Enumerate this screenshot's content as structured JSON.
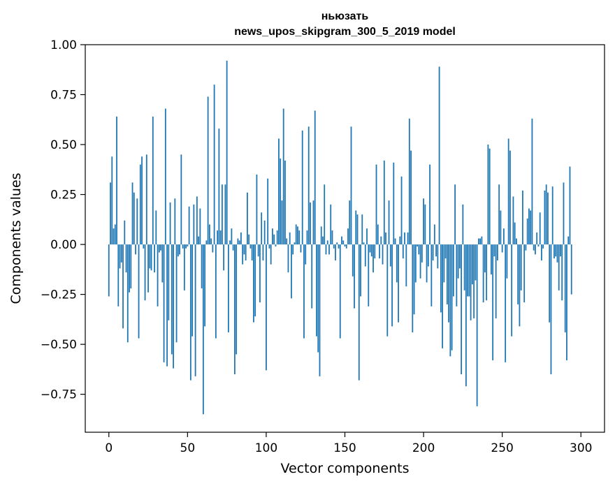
{
  "chart_data": {
    "type": "bar",
    "title": "ньюзать\nnews_upos_skipgram_300_5_2019 model",
    "xlabel": "Vector components",
    "ylabel": "Components values",
    "xlim": [
      -15,
      315
    ],
    "ylim": [
      -0.94,
      1.0
    ],
    "xticks": [
      0,
      50,
      100,
      150,
      200,
      250,
      300
    ],
    "xtick_labels": [
      "0",
      "50",
      "100",
      "150",
      "200",
      "250",
      "300"
    ],
    "yticks": [
      -0.75,
      -0.5,
      -0.25,
      0.0,
      0.25,
      0.5,
      0.75,
      1.0
    ],
    "ytick_labels": [
      "−0.75",
      "−0.50",
      "−0.25",
      "0.00",
      "0.25",
      "0.50",
      "0.75",
      "1.00"
    ],
    "grid": false,
    "legend": "none",
    "bar_color": "#1f77b4",
    "series": [
      {
        "values": [
          -0.26,
          0.31,
          0.44,
          0.08,
          0.1,
          0.64,
          -0.31,
          -0.12,
          -0.09,
          -0.42,
          0.12,
          -0.14,
          -0.49,
          -0.24,
          -0.22,
          0.31,
          0.26,
          -0.05,
          0.23,
          -0.47,
          0.4,
          0.44,
          -0.02,
          -0.28,
          0.45,
          -0.24,
          -0.12,
          -0.13,
          0.64,
          -0.14,
          0.17,
          -0.31,
          -0.04,
          -0.03,
          -0.19,
          -0.59,
          0.68,
          -0.61,
          -0.38,
          0.21,
          -0.55,
          -0.62,
          0.23,
          -0.49,
          -0.06,
          -0.05,
          0.45,
          -0.02,
          -0.23,
          -0.02,
          -0.01,
          0.19,
          -0.68,
          -0.46,
          0.2,
          -0.66,
          0.24,
          0.04,
          0.18,
          -0.22,
          -0.85,
          -0.41,
          0.02,
          0.74,
          0.1,
          0.03,
          -0.04,
          0.8,
          -0.47,
          0.07,
          0.58,
          0.07,
          0.3,
          -0.13,
          0.3,
          0.92,
          -0.44,
          0.02,
          0.08,
          -0.03,
          -0.65,
          -0.55,
          0.03,
          0.02,
          0.06,
          -0.1,
          -0.05,
          -0.08,
          0.26,
          0.05,
          -0.02,
          -0.08,
          -0.39,
          -0.36,
          0.35,
          -0.06,
          -0.29,
          0.16,
          -0.08,
          0.12,
          -0.63,
          0.33,
          -0.02,
          -0.1,
          0.08,
          0.05,
          -0.01,
          0.07,
          0.53,
          0.43,
          0.22,
          0.68,
          0.42,
          0.03,
          -0.14,
          0.06,
          -0.27,
          -0.05,
          0.01,
          0.1,
          0.09,
          0.07,
          -0.04,
          0.57,
          -0.47,
          -0.1,
          0.07,
          0.59,
          0.21,
          -0.32,
          0.22,
          0.67,
          -0.46,
          -0.54,
          -0.66,
          0.09,
          0.04,
          0.3,
          -0.05,
          0.02,
          -0.05,
          0.2,
          0.07,
          -0.02,
          -0.08,
          0.01,
          -0.02,
          -0.47,
          0.04,
          0.02,
          -0.01,
          -0.02,
          0.08,
          0.22,
          0.59,
          -0.16,
          -0.32,
          0.17,
          0.15,
          -0.68,
          -0.26,
          0.15,
          0.01,
          -0.11,
          0.08,
          -0.31,
          -0.04,
          -0.06,
          -0.14,
          -0.07,
          0.4,
          0.1,
          -0.07,
          0.04,
          -0.1,
          0.42,
          0.06,
          -0.46,
          0.22,
          -0.11,
          -0.41,
          0.41,
          0.03,
          -0.19,
          -0.39,
          0.04,
          0.34,
          -0.07,
          0.06,
          -0.21,
          0.06,
          0.63,
          0.47,
          -0.44,
          -0.35,
          -0.19,
          -0.01,
          -0.05,
          -0.17,
          -0.09,
          0.23,
          0.2,
          -0.19,
          -0.11,
          0.4,
          -0.31,
          -0.08,
          0.1,
          -0.06,
          -0.12,
          0.89,
          -0.34,
          -0.52,
          -0.19,
          -0.07,
          -0.3,
          -0.39,
          -0.56,
          -0.53,
          -0.26,
          0.3,
          -0.31,
          -0.17,
          -0.12,
          -0.65,
          0.2,
          -0.23,
          -0.71,
          -0.26,
          -0.26,
          -0.38,
          -0.2,
          -0.37,
          -0.18,
          -0.81,
          0.03,
          0.03,
          0.04,
          -0.29,
          -0.14,
          -0.28,
          0.5,
          0.48,
          -0.15,
          -0.58,
          -0.06,
          -0.37,
          -0.08,
          0.3,
          0.17,
          -0.04,
          0.08,
          -0.59,
          -0.17,
          0.53,
          0.47,
          -0.46,
          0.24,
          0.11,
          0.03,
          -0.3,
          -0.41,
          -0.23,
          0.27,
          -0.29,
          -0.03,
          0.13,
          0.18,
          0.17,
          0.63,
          -0.03,
          -0.05,
          0.06,
          -0.01,
          0.16,
          -0.08,
          -0.02,
          0.27,
          0.3,
          0.26,
          -0.39,
          -0.65,
          0.29,
          -0.07,
          -0.06,
          -0.09,
          -0.23,
          -0.06,
          -0.28,
          0.31,
          -0.44,
          -0.58,
          0.04,
          0.39,
          -0.25
        ]
      }
    ]
  }
}
